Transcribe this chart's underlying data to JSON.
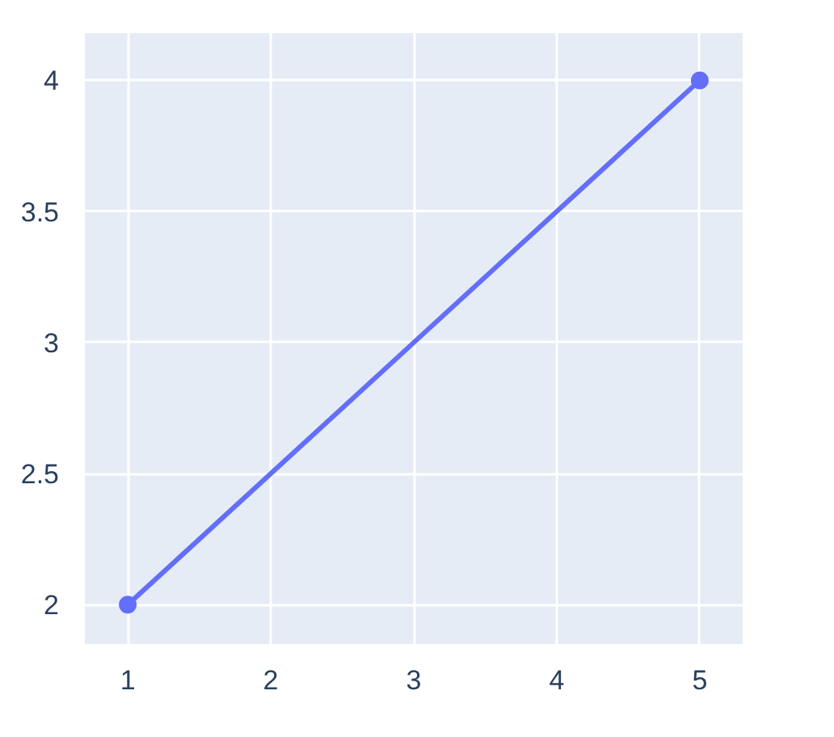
{
  "chart_data": {
    "type": "line",
    "x": [
      1,
      5
    ],
    "series": [
      {
        "color": "#636efa",
        "values": [
          2,
          4
        ]
      }
    ],
    "marker": "circle",
    "line_style": "solid",
    "grid": true,
    "xlim": [
      0.7,
      5.3
    ],
    "ylim": [
      1.85,
      4.18
    ],
    "xticks": [
      1,
      2,
      3,
      4,
      5
    ],
    "yticks": [
      2,
      2.5,
      3,
      3.5,
      4
    ]
  }
}
